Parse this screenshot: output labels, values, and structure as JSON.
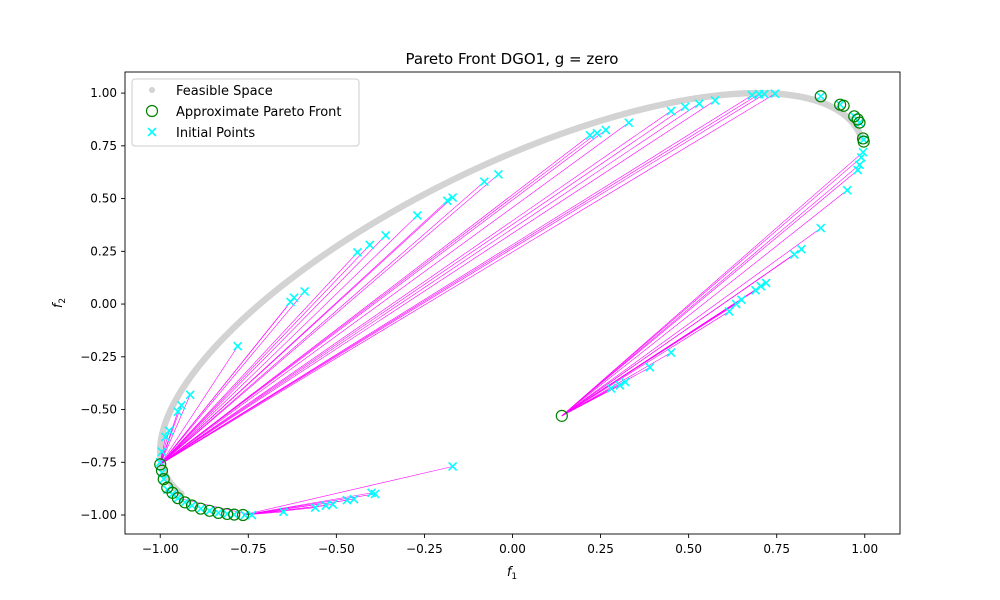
{
  "chart_data": {
    "type": "scatter",
    "title": "Pareto Front DGO1, g = zero",
    "xlabel": "f",
    "xlabel_sub": "1",
    "ylabel": "f",
    "ylabel_sub": "2",
    "xlim": [
      -1.1,
      1.1
    ],
    "ylim": [
      -1.09,
      1.1
    ],
    "x_ticks": [
      -1.0,
      -0.75,
      -0.5,
      -0.25,
      0.0,
      0.25,
      0.5,
      0.75,
      1.0
    ],
    "x_tick_labels": [
      "−1.00",
      "−0.75",
      "−0.50",
      "−0.25",
      "0.00",
      "0.25",
      "0.50",
      "0.75",
      "1.00"
    ],
    "y_ticks": [
      -1.0,
      -0.75,
      -0.5,
      -0.25,
      0.0,
      0.25,
      0.5,
      0.75,
      1.0
    ],
    "y_tick_labels": [
      "−1.00",
      "−0.75",
      "−0.50",
      "−0.25",
      "0.00",
      "0.25",
      "0.50",
      "0.75",
      "1.00"
    ],
    "grid": false,
    "legend_position": "top-left",
    "legend": [
      {
        "label": "Feasible Space",
        "marker": "dot",
        "color": "#d3d3d3"
      },
      {
        "label": "Approximate Pareto Front",
        "marker": "open-circle",
        "color": "#008000"
      },
      {
        "label": "Initial Points",
        "marker": "x",
        "color": "#00ffff"
      }
    ],
    "colors": {
      "feasible": "#d3d3d3",
      "pareto": "#008000",
      "initial": "#00ffff",
      "links": "#ff00ff"
    },
    "feasible_space": {
      "description_curve": "f1 = sin(t), f2 = sin(t + 0.8)",
      "t_range": [
        -1.92,
        1.43
      ]
    },
    "pareto_front": [
      [
        -1.0,
        -0.76
      ],
      [
        -0.995,
        -0.79
      ],
      [
        -0.99,
        -0.83
      ],
      [
        -0.98,
        -0.87
      ],
      [
        -0.965,
        -0.895
      ],
      [
        -0.95,
        -0.92
      ],
      [
        -0.93,
        -0.94
      ],
      [
        -0.91,
        -0.955
      ],
      [
        -0.885,
        -0.97
      ],
      [
        -0.86,
        -0.98
      ],
      [
        -0.835,
        -0.99
      ],
      [
        -0.81,
        -0.995
      ],
      [
        -0.79,
        -0.998
      ],
      [
        -0.765,
        -1.0
      ],
      [
        0.14,
        -0.53
      ],
      [
        0.875,
        0.985
      ],
      [
        0.93,
        0.945
      ],
      [
        0.94,
        0.94
      ],
      [
        0.97,
        0.89
      ],
      [
        0.98,
        0.875
      ],
      [
        0.985,
        0.86
      ],
      [
        0.995,
        0.785
      ],
      [
        0.997,
        0.77
      ]
    ],
    "initial_points": [
      [
        -0.17,
        -0.77
      ],
      [
        -0.39,
        -0.9
      ],
      [
        -0.4,
        -0.895
      ],
      [
        -0.45,
        -0.925
      ],
      [
        -0.47,
        -0.93
      ],
      [
        -0.51,
        -0.95
      ],
      [
        -0.53,
        -0.955
      ],
      [
        -0.56,
        -0.965
      ],
      [
        -0.65,
        -0.985
      ],
      [
        -0.74,
        -1.0
      ],
      [
        -0.76,
        -1.0
      ],
      [
        -0.79,
        -0.998
      ],
      [
        -0.81,
        -0.995
      ],
      [
        -0.835,
        -0.99
      ],
      [
        -0.86,
        -0.98
      ],
      [
        -0.885,
        -0.97
      ],
      [
        -0.91,
        -0.955
      ],
      [
        -0.93,
        -0.94
      ],
      [
        -0.95,
        -0.92
      ],
      [
        -0.965,
        -0.9
      ],
      [
        -0.98,
        -0.88
      ],
      [
        -0.99,
        -0.83
      ],
      [
        -0.995,
        -0.8
      ],
      [
        -1.0,
        -0.75
      ],
      [
        -0.995,
        -0.7
      ],
      [
        -0.985,
        -0.63
      ],
      [
        -0.975,
        -0.6
      ],
      [
        -0.95,
        -0.51
      ],
      [
        -0.94,
        -0.48
      ],
      [
        -0.915,
        -0.43
      ],
      [
        -0.78,
        -0.2
      ],
      [
        -0.63,
        0.01
      ],
      [
        -0.62,
        0.03
      ],
      [
        -0.59,
        0.06
      ],
      [
        -0.44,
        0.245
      ],
      [
        -0.405,
        0.28
      ],
      [
        -0.36,
        0.325
      ],
      [
        -0.27,
        0.42
      ],
      [
        -0.185,
        0.49
      ],
      [
        -0.17,
        0.505
      ],
      [
        -0.08,
        0.58
      ],
      [
        -0.04,
        0.615
      ],
      [
        0.22,
        0.8
      ],
      [
        0.24,
        0.81
      ],
      [
        0.265,
        0.825
      ],
      [
        0.33,
        0.86
      ],
      [
        0.45,
        0.915
      ],
      [
        0.49,
        0.935
      ],
      [
        0.53,
        0.95
      ],
      [
        0.575,
        0.965
      ],
      [
        0.68,
        0.99
      ],
      [
        0.7,
        0.995
      ],
      [
        0.715,
        0.995
      ],
      [
        0.745,
        0.997
      ],
      [
        0.995,
        0.72
      ],
      [
        0.99,
        0.695
      ],
      [
        0.985,
        0.66
      ],
      [
        0.98,
        0.635
      ],
      [
        0.95,
        0.54
      ],
      [
        0.875,
        0.36
      ],
      [
        0.82,
        0.26
      ],
      [
        0.8,
        0.235
      ],
      [
        0.72,
        0.1
      ],
      [
        0.705,
        0.085
      ],
      [
        0.69,
        0.065
      ],
      [
        0.65,
        0.02
      ],
      [
        0.635,
        0.0
      ],
      [
        0.615,
        -0.035
      ],
      [
        0.45,
        -0.23
      ],
      [
        0.39,
        -0.3
      ],
      [
        0.32,
        -0.37
      ],
      [
        0.305,
        -0.385
      ],
      [
        0.28,
        -0.4
      ],
      [
        0.875,
        0.985
      ],
      [
        0.93,
        0.945
      ],
      [
        0.97,
        0.89
      ],
      [
        0.985,
        0.86
      ],
      [
        0.997,
        0.78
      ]
    ],
    "links": [
      [
        [
          -0.17,
          -0.77
        ],
        [
          -0.765,
          -1.0
        ]
      ],
      [
        [
          -0.39,
          -0.9
        ],
        [
          -0.765,
          -1.0
        ]
      ],
      [
        [
          -0.4,
          -0.895
        ],
        [
          -0.765,
          -1.0
        ]
      ],
      [
        [
          -0.45,
          -0.925
        ],
        [
          -0.765,
          -1.0
        ]
      ],
      [
        [
          -0.47,
          -0.93
        ],
        [
          -0.765,
          -1.0
        ]
      ],
      [
        [
          -0.51,
          -0.95
        ],
        [
          -0.765,
          -1.0
        ]
      ],
      [
        [
          -0.53,
          -0.955
        ],
        [
          -0.765,
          -1.0
        ]
      ],
      [
        [
          -0.56,
          -0.965
        ],
        [
          -0.765,
          -1.0
        ]
      ],
      [
        [
          -0.65,
          -0.985
        ],
        [
          -0.765,
          -1.0
        ]
      ],
      [
        [
          -0.995,
          -0.7
        ],
        [
          -1.0,
          -0.76
        ]
      ],
      [
        [
          -0.985,
          -0.63
        ],
        [
          -1.0,
          -0.76
        ]
      ],
      [
        [
          -0.975,
          -0.6
        ],
        [
          -1.0,
          -0.76
        ]
      ],
      [
        [
          -0.95,
          -0.51
        ],
        [
          -1.0,
          -0.76
        ]
      ],
      [
        [
          -0.94,
          -0.48
        ],
        [
          -1.0,
          -0.76
        ]
      ],
      [
        [
          -0.915,
          -0.43
        ],
        [
          -1.0,
          -0.76
        ]
      ],
      [
        [
          -0.78,
          -0.2
        ],
        [
          -1.0,
          -0.76
        ]
      ],
      [
        [
          -0.63,
          0.01
        ],
        [
          -1.0,
          -0.76
        ]
      ],
      [
        [
          -0.62,
          0.03
        ],
        [
          -1.0,
          -0.76
        ]
      ],
      [
        [
          -0.59,
          0.06
        ],
        [
          -1.0,
          -0.76
        ]
      ],
      [
        [
          -0.44,
          0.245
        ],
        [
          -1.0,
          -0.76
        ]
      ],
      [
        [
          -0.405,
          0.28
        ],
        [
          -1.0,
          -0.76
        ]
      ],
      [
        [
          -0.36,
          0.325
        ],
        [
          -1.0,
          -0.76
        ]
      ],
      [
        [
          -0.27,
          0.42
        ],
        [
          -1.0,
          -0.76
        ]
      ],
      [
        [
          -0.185,
          0.49
        ],
        [
          -1.0,
          -0.76
        ]
      ],
      [
        [
          -0.17,
          0.505
        ],
        [
          -1.0,
          -0.76
        ]
      ],
      [
        [
          -0.08,
          0.58
        ],
        [
          -1.0,
          -0.76
        ]
      ],
      [
        [
          -0.04,
          0.615
        ],
        [
          -1.0,
          -0.76
        ]
      ],
      [
        [
          0.22,
          0.8
        ],
        [
          -1.0,
          -0.76
        ]
      ],
      [
        [
          0.24,
          0.81
        ],
        [
          -1.0,
          -0.76
        ]
      ],
      [
        [
          0.265,
          0.825
        ],
        [
          -1.0,
          -0.76
        ]
      ],
      [
        [
          0.33,
          0.86
        ],
        [
          -1.0,
          -0.76
        ]
      ],
      [
        [
          0.45,
          0.915
        ],
        [
          -1.0,
          -0.76
        ]
      ],
      [
        [
          0.49,
          0.935
        ],
        [
          -1.0,
          -0.76
        ]
      ],
      [
        [
          0.53,
          0.95
        ],
        [
          -1.0,
          -0.76
        ]
      ],
      [
        [
          0.575,
          0.965
        ],
        [
          -1.0,
          -0.76
        ]
      ],
      [
        [
          0.68,
          0.99
        ],
        [
          -1.0,
          -0.76
        ]
      ],
      [
        [
          0.7,
          0.995
        ],
        [
          -1.0,
          -0.76
        ]
      ],
      [
        [
          0.715,
          0.995
        ],
        [
          -1.0,
          -0.76
        ]
      ],
      [
        [
          0.745,
          0.997
        ],
        [
          -1.0,
          -0.76
        ]
      ],
      [
        [
          -0.74,
          -1.0
        ],
        [
          -0.95,
          -0.92
        ]
      ],
      [
        [
          0.995,
          0.72
        ],
        [
          0.14,
          -0.53
        ]
      ],
      [
        [
          0.99,
          0.695
        ],
        [
          0.14,
          -0.53
        ]
      ],
      [
        [
          0.985,
          0.66
        ],
        [
          0.14,
          -0.53
        ]
      ],
      [
        [
          0.98,
          0.635
        ],
        [
          0.14,
          -0.53
        ]
      ],
      [
        [
          0.95,
          0.54
        ],
        [
          0.14,
          -0.53
        ]
      ],
      [
        [
          0.875,
          0.36
        ],
        [
          0.14,
          -0.53
        ]
      ],
      [
        [
          0.82,
          0.26
        ],
        [
          0.14,
          -0.53
        ]
      ],
      [
        [
          0.8,
          0.235
        ],
        [
          0.14,
          -0.53
        ]
      ],
      [
        [
          0.72,
          0.1
        ],
        [
          0.14,
          -0.53
        ]
      ],
      [
        [
          0.705,
          0.085
        ],
        [
          0.14,
          -0.53
        ]
      ],
      [
        [
          0.69,
          0.065
        ],
        [
          0.14,
          -0.53
        ]
      ],
      [
        [
          0.65,
          0.02
        ],
        [
          0.14,
          -0.53
        ]
      ],
      [
        [
          0.635,
          0.0
        ],
        [
          0.14,
          -0.53
        ]
      ],
      [
        [
          0.615,
          -0.035
        ],
        [
          0.14,
          -0.53
        ]
      ],
      [
        [
          0.45,
          -0.23
        ],
        [
          0.14,
          -0.53
        ]
      ],
      [
        [
          0.39,
          -0.3
        ],
        [
          0.14,
          -0.53
        ]
      ],
      [
        [
          0.32,
          -0.37
        ],
        [
          0.14,
          -0.53
        ]
      ],
      [
        [
          0.305,
          -0.385
        ],
        [
          0.14,
          -0.53
        ]
      ],
      [
        [
          0.28,
          -0.4
        ],
        [
          0.14,
          -0.53
        ]
      ]
    ]
  }
}
